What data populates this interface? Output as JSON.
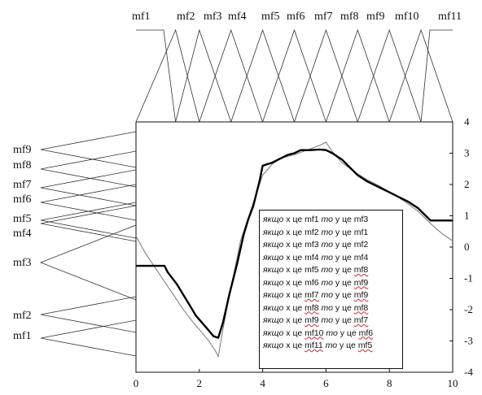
{
  "top_axis": {
    "labels": [
      "mf1",
      "mf2",
      "mf3",
      "mf4",
      "mf5",
      "mf6",
      "mf7",
      "mf8",
      "mf9",
      "mf10",
      "mf11"
    ],
    "x_peaks": [
      0,
      1.25,
      2.0,
      3.0,
      4.0,
      5.0,
      6.0,
      7.0,
      8.0,
      9.0,
      10.0
    ]
  },
  "left_axis": {
    "labels": [
      {
        "name": "mf9",
        "y": 3.0
      },
      {
        "name": "mf8",
        "y": 2.5
      },
      {
        "name": "mf7",
        "y": 1.9
      },
      {
        "name": "mf6",
        "y": 1.45
      },
      {
        "name": "mf5",
        "y": 0.8
      },
      {
        "name": "mf4",
        "y": 0.75
      },
      {
        "name": "mf3",
        "y": -0.4
      },
      {
        "name": "mf2",
        "y": -2.0
      },
      {
        "name": "mf1",
        "y": -2.9
      }
    ]
  },
  "chart_data": {
    "type": "line",
    "x_ticks": [
      "0",
      "2",
      "4",
      "6",
      "8",
      "10"
    ],
    "y_ticks": [
      "4",
      "3",
      "2",
      "1",
      "0",
      "-1",
      "-2",
      "-3",
      "-4"
    ],
    "xlim": [
      0,
      10
    ],
    "ylim": [
      -4,
      4
    ],
    "series": [
      {
        "style": "thick",
        "color": "#000000",
        "x": [
          0,
          0.9,
          1.0,
          1.3,
          1.6,
          1.9,
          2.2,
          2.45,
          2.6,
          2.75,
          2.95,
          3.2,
          3.4,
          3.55,
          3.7,
          3.9,
          4.0,
          4.15,
          4.3,
          4.5,
          4.8,
          5.0,
          5.2,
          5.5,
          5.8,
          6.0,
          6.2,
          6.5,
          6.8,
          7.0,
          7.3,
          7.6,
          8.0,
          8.3,
          8.6,
          8.9,
          9.1,
          9.3,
          9.5,
          9.8,
          10.0
        ],
        "y": [
          -0.6,
          -0.6,
          -0.8,
          -1.2,
          -1.7,
          -2.2,
          -2.55,
          -2.85,
          -2.9,
          -2.4,
          -1.5,
          -0.5,
          0.4,
          0.9,
          1.3,
          2.1,
          2.6,
          2.65,
          2.7,
          2.8,
          2.95,
          3.0,
          3.1,
          3.1,
          3.12,
          3.1,
          3.0,
          2.8,
          2.5,
          2.3,
          2.1,
          1.95,
          1.75,
          1.6,
          1.45,
          1.25,
          1.05,
          0.85,
          0.85,
          0.85,
          0.85
        ]
      },
      {
        "style": "thin",
        "color": "#777777",
        "x": [
          0,
          0.3,
          0.6,
          0.9,
          1.2,
          1.5,
          1.8,
          2.1,
          2.3,
          2.5,
          2.6,
          2.75,
          3.0,
          3.3,
          3.6,
          3.8,
          4.0,
          4.3,
          4.6,
          5.0,
          5.4,
          5.8,
          6.0,
          6.2,
          6.5,
          6.9,
          7.3,
          7.7,
          8.1,
          8.5,
          8.9,
          9.3,
          9.7,
          10.0
        ],
        "y": [
          0.35,
          -0.2,
          -0.65,
          -1.1,
          -1.55,
          -2.0,
          -2.4,
          -2.75,
          -3.0,
          -3.3,
          -3.5,
          -2.6,
          -1.3,
          0.2,
          1.1,
          1.7,
          2.3,
          2.65,
          2.85,
          2.95,
          3.1,
          3.25,
          3.35,
          3.05,
          2.7,
          2.4,
          2.15,
          1.95,
          1.7,
          1.45,
          1.15,
          0.75,
          0.4,
          0.2
        ]
      }
    ]
  },
  "rules": [
    {
      "prefix": "якщо",
      "x": "х",
      "is": "це",
      "in_mf": "mf1",
      "then": "то",
      "y": "у",
      "is2": "це",
      "out_mf": "mf3",
      "underline": false
    },
    {
      "prefix": "якщо",
      "x": "х",
      "is": "це",
      "in_mf": "mf2",
      "then": "то",
      "y": "у",
      "is2": "це",
      "out_mf": "mf1",
      "underline": false
    },
    {
      "prefix": "якщо",
      "x": "х",
      "is": "це",
      "in_mf": "mf3",
      "then": "то",
      "y": "у",
      "is2": "це",
      "out_mf": "mf2",
      "underline": false
    },
    {
      "prefix": "якщо",
      "x": "х",
      "is": "це",
      "in_mf": "mf4",
      "then": "то",
      "y": "у",
      "is2": "це",
      "out_mf": "mf4",
      "underline": false
    },
    {
      "prefix": "якщо",
      "x": "х",
      "is": "це",
      "in_mf": "mf5",
      "then": "то",
      "y": "у",
      "is2": "це",
      "out_mf": "mf8",
      "underline": true
    },
    {
      "prefix": "якщо",
      "x": "х",
      "is": "це",
      "in_mf": "mf6",
      "then": "то",
      "y": "у",
      "is2": "це",
      "out_mf": "mf9",
      "underline": true
    },
    {
      "prefix": "якщо",
      "x": "х",
      "is": "це",
      "in_mf": "mf7",
      "then": "то",
      "y": "у",
      "is2": "це",
      "out_mf": "mf9",
      "underline": true
    },
    {
      "prefix": "якщо",
      "x": "х",
      "is": "це",
      "in_mf": "mf8",
      "then": "то",
      "y": "у",
      "is2": "це",
      "out_mf": "mf8",
      "underline": true
    },
    {
      "prefix": "якщо",
      "x": "х",
      "is": "це",
      "in_mf": "mf9",
      "then": "то",
      "y": "у",
      "is2": "це",
      "out_mf": "mf7",
      "underline": true
    },
    {
      "prefix": "якщо",
      "x": "х",
      "is": "це",
      "in_mf": "mf10",
      "then": "то",
      "y": "у",
      "is2": "це",
      "out_mf": "mf6",
      "underline": true
    },
    {
      "prefix": "якщо",
      "x": "х",
      "is": "це",
      "in_mf": "mf11",
      "then": "то",
      "y": "у",
      "is2": "це",
      "out_mf": "mf5",
      "underline": true
    }
  ]
}
